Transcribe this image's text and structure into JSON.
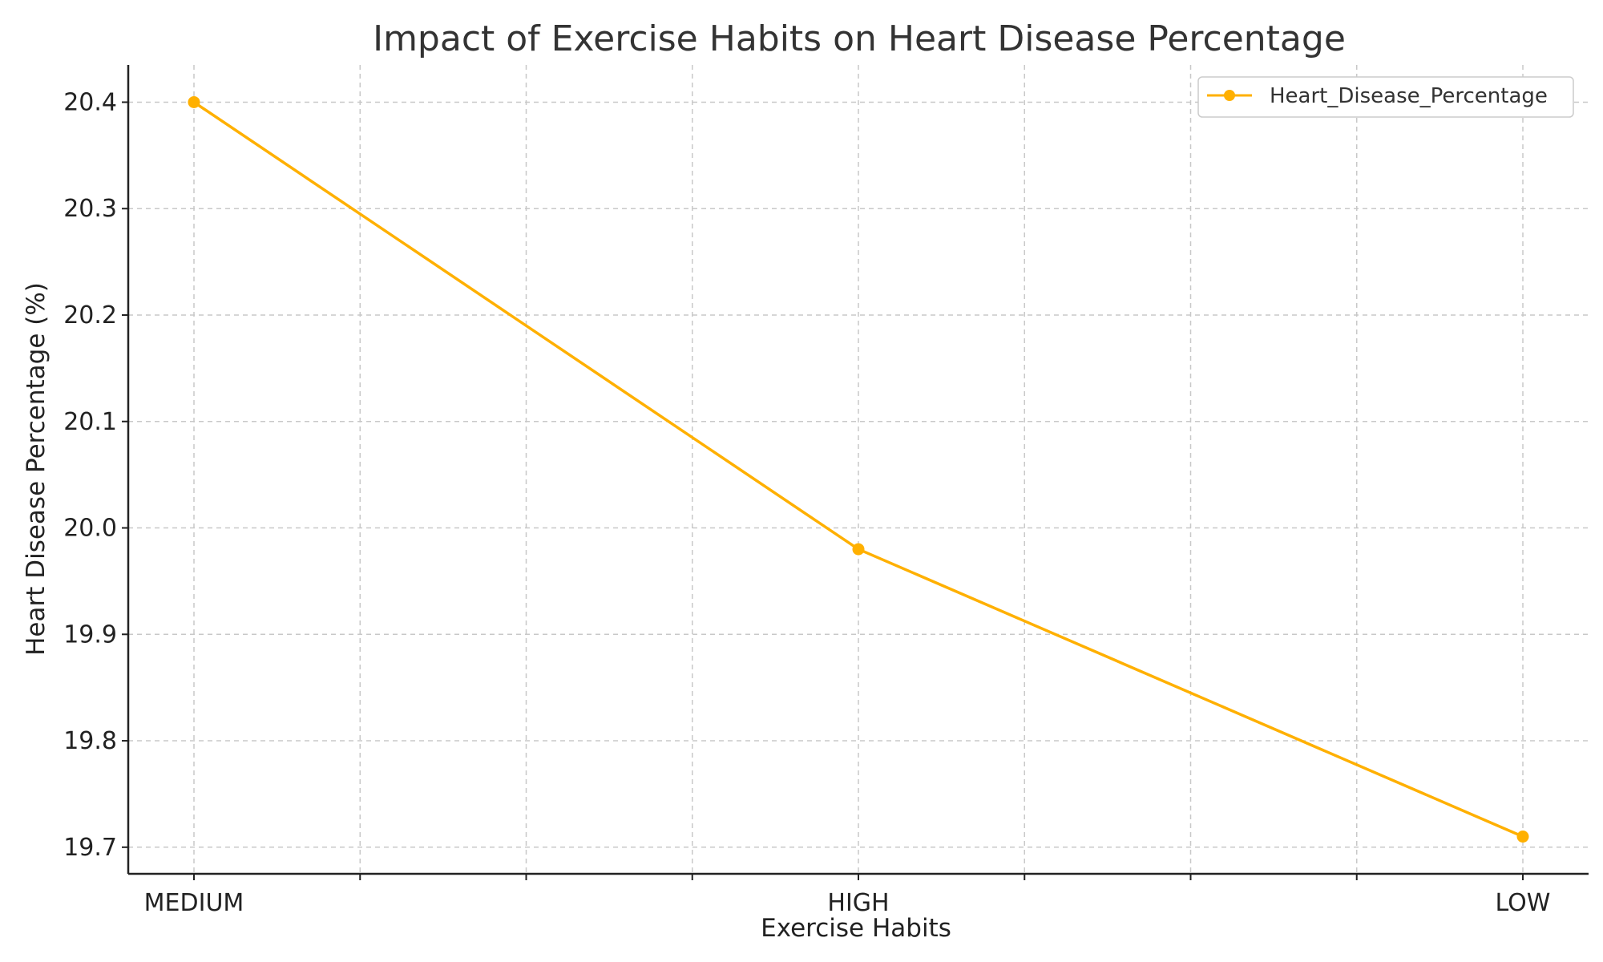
{
  "chart_data": {
    "type": "line",
    "title": "Impact of Exercise Habits on Heart Disease Percentage",
    "xlabel": "Exercise Habits",
    "ylabel": "Heart Disease Percentage (%)",
    "categories": [
      "MEDIUM",
      "HIGH",
      "LOW"
    ],
    "series": [
      {
        "name": "Heart_Disease_Percentage",
        "values": [
          20.4,
          19.98,
          19.71
        ],
        "color": "#FFB000"
      }
    ],
    "ylim": [
      19.675,
      20.435
    ],
    "yticks": [
      19.7,
      19.8,
      19.9,
      20.0,
      20.1,
      20.2,
      20.3,
      20.4
    ],
    "ytick_labels": [
      "19.7",
      "19.8",
      "19.9",
      "20.0",
      "20.1",
      "20.2",
      "20.3",
      "20.4"
    ],
    "grid": true,
    "x_minor_grid_per_interval": 4,
    "legend": {
      "placement": "top-right",
      "marker": "circle-line"
    }
  }
}
